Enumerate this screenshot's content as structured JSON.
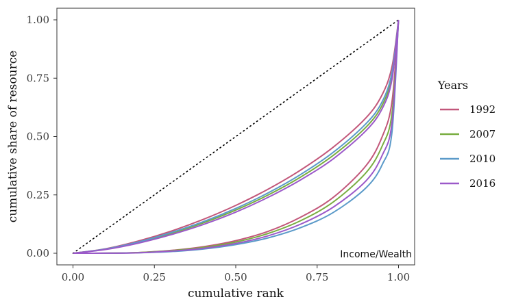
{
  "chart_data": {
    "type": "line",
    "title": "",
    "xlabel": "cumulative rank",
    "ylabel": "cumulative share of resource",
    "xlim": [
      0,
      1
    ],
    "ylim": [
      0,
      1
    ],
    "x_ticks": [
      "0.00",
      "0.25",
      "0.50",
      "0.75",
      "1.00"
    ],
    "y_ticks": [
      "0.00",
      "0.25",
      "0.50",
      "0.75",
      "1.00"
    ],
    "grid": false,
    "annotation": "Income/Wealth",
    "legend": {
      "title": "Years",
      "placement": "right"
    },
    "reference_line": {
      "style": "dotted",
      "color": "#000000",
      "points": [
        [
          0,
          0
        ],
        [
          1,
          1
        ]
      ]
    },
    "series": [
      {
        "name": "1992",
        "color": "#C2577A",
        "curve": "income",
        "x": [
          0,
          0.1,
          0.2,
          0.3,
          0.4,
          0.5,
          0.6,
          0.7,
          0.8,
          0.9,
          0.95,
          0.98,
          1
        ],
        "y": [
          0,
          0.019,
          0.052,
          0.094,
          0.145,
          0.205,
          0.275,
          0.357,
          0.455,
          0.58,
          0.68,
          0.8,
          1
        ]
      },
      {
        "name": "1992",
        "color": "#C2577A",
        "curve": "wealth",
        "x": [
          0,
          0.1,
          0.2,
          0.3,
          0.4,
          0.5,
          0.6,
          0.7,
          0.8,
          0.9,
          0.95,
          0.98,
          1
        ],
        "y": [
          0,
          0.0004,
          0.003,
          0.012,
          0.028,
          0.054,
          0.094,
          0.155,
          0.24,
          0.375,
          0.5,
          0.65,
          1
        ]
      },
      {
        "name": "2007",
        "color": "#79AD41",
        "curve": "income",
        "x": [
          0,
          0.1,
          0.2,
          0.3,
          0.4,
          0.5,
          0.6,
          0.7,
          0.8,
          0.9,
          0.95,
          0.98,
          1
        ],
        "y": [
          0,
          0.017,
          0.046,
          0.084,
          0.13,
          0.185,
          0.25,
          0.327,
          0.42,
          0.54,
          0.635,
          0.76,
          1
        ]
      },
      {
        "name": "2007",
        "color": "#79AD41",
        "curve": "wealth",
        "x": [
          0,
          0.1,
          0.2,
          0.3,
          0.4,
          0.5,
          0.6,
          0.7,
          0.8,
          0.9,
          0.95,
          0.98,
          1
        ],
        "y": [
          0,
          0.0004,
          0.003,
          0.011,
          0.025,
          0.048,
          0.085,
          0.14,
          0.22,
          0.345,
          0.46,
          0.6,
          1
        ]
      },
      {
        "name": "2010",
        "color": "#5B9AC9",
        "curve": "income",
        "x": [
          0,
          0.1,
          0.2,
          0.3,
          0.4,
          0.5,
          0.6,
          0.7,
          0.8,
          0.9,
          0.95,
          0.98,
          1
        ],
        "y": [
          0,
          0.018,
          0.048,
          0.088,
          0.135,
          0.192,
          0.259,
          0.338,
          0.433,
          0.555,
          0.65,
          0.775,
          1
        ]
      },
      {
        "name": "2010",
        "color": "#5B9AC9",
        "curve": "wealth",
        "x": [
          0,
          0.1,
          0.2,
          0.3,
          0.4,
          0.5,
          0.6,
          0.7,
          0.8,
          0.9,
          0.95,
          0.98,
          1
        ],
        "y": [
          0,
          0.0003,
          0.002,
          0.007,
          0.018,
          0.037,
          0.066,
          0.11,
          0.175,
          0.28,
          0.38,
          0.52,
          1
        ]
      },
      {
        "name": "2016",
        "color": "#9B59C9",
        "curve": "income",
        "x": [
          0,
          0.1,
          0.2,
          0.3,
          0.4,
          0.5,
          0.6,
          0.7,
          0.8,
          0.9,
          0.95,
          0.98,
          1
        ],
        "y": [
          0,
          0.016,
          0.043,
          0.079,
          0.123,
          0.176,
          0.24,
          0.315,
          0.405,
          0.525,
          0.62,
          0.745,
          1
        ]
      },
      {
        "name": "2016",
        "color": "#9B59C9",
        "curve": "wealth",
        "x": [
          0,
          0.1,
          0.2,
          0.3,
          0.4,
          0.5,
          0.6,
          0.7,
          0.8,
          0.9,
          0.95,
          0.98,
          1
        ],
        "y": [
          0,
          0.0003,
          0.002,
          0.009,
          0.021,
          0.042,
          0.075,
          0.125,
          0.198,
          0.31,
          0.42,
          0.56,
          1
        ]
      }
    ]
  },
  "legend_items": [
    {
      "label": "1992",
      "color": "#C2577A"
    },
    {
      "label": "2007",
      "color": "#79AD41"
    },
    {
      "label": "2010",
      "color": "#5B9AC9"
    },
    {
      "label": "2016",
      "color": "#9B59C9"
    }
  ]
}
